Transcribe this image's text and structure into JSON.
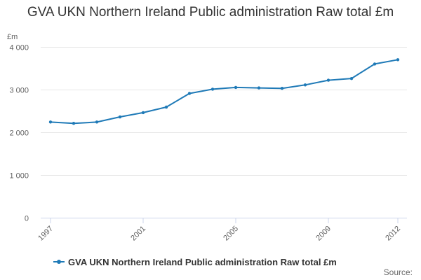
{
  "colors": {
    "series": "#1f7ab7",
    "grid": "#e6e6e6",
    "axis": "#ccd6eb"
  },
  "chart_data": {
    "type": "line",
    "title": "GVA UKN Northern Ireland Public administration Raw total £m",
    "ylabel_unit": "£m",
    "xlabel": "",
    "ylim": [
      0,
      4000
    ],
    "y_ticks": [
      0,
      1000,
      2000,
      3000,
      4000
    ],
    "y_tick_labels": [
      "0",
      "1 000",
      "2 000",
      "3 000",
      "4 000"
    ],
    "x_tick_labels": [
      "1997",
      "2001",
      "2005",
      "2009",
      "2012"
    ],
    "x": [
      1997,
      1998,
      1999,
      2000,
      2001,
      2002,
      2003,
      2004,
      2005,
      2006,
      2007,
      2008,
      2009,
      2010,
      2011,
      2012
    ],
    "series": [
      {
        "name": "GVA UKN Northern Ireland Public administration Raw total £m",
        "values": [
          2240,
          2210,
          2240,
          2360,
          2460,
          2590,
          2910,
          3010,
          3050,
          3040,
          3030,
          3110,
          3220,
          3260,
          3600,
          3700
        ]
      }
    ],
    "legend": "bottom"
  },
  "credits": "Source:"
}
